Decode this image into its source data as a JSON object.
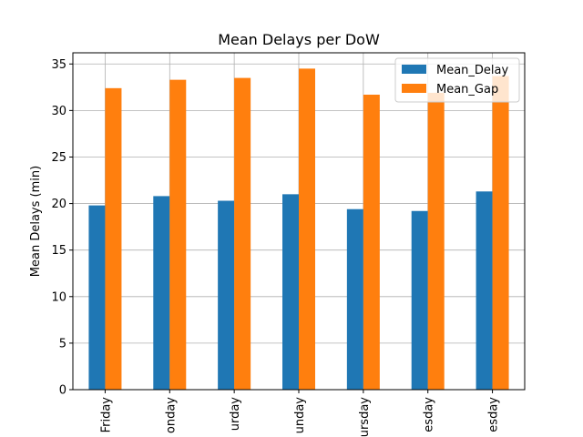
{
  "chart_data": {
    "type": "bar",
    "title": "Mean Delays per DoW",
    "xlabel": "",
    "ylabel": "Mean Delays (min)",
    "ylim": [
      0,
      36.2
    ],
    "yticks": [
      0,
      5,
      10,
      15,
      20,
      25,
      30,
      35
    ],
    "grid": true,
    "legend_position": "top-right",
    "categories": [
      "Friday",
      "onday",
      "urday",
      "unday",
      "ursday",
      "esday",
      "esday"
    ],
    "series": [
      {
        "name": "Mean_Delay",
        "color": "#1f77b4",
        "values": [
          19.8,
          20.8,
          20.3,
          21.0,
          19.4,
          19.2,
          21.3
        ]
      },
      {
        "name": "Mean_Gap",
        "color": "#ff7f0e",
        "values": [
          32.4,
          33.3,
          33.5,
          34.5,
          31.7,
          31.9,
          33.7
        ]
      }
    ]
  }
}
